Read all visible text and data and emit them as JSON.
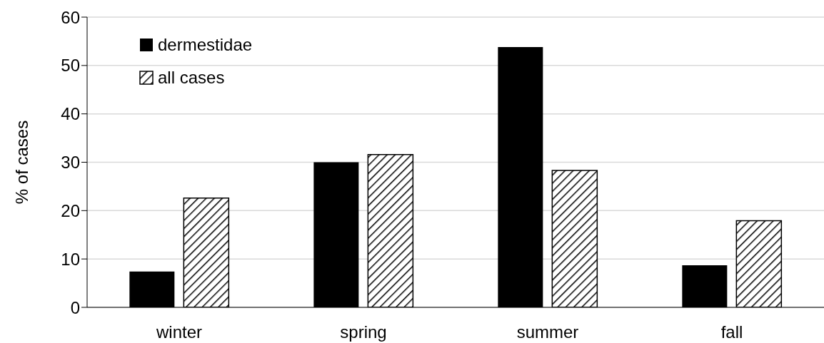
{
  "chart_data": {
    "type": "bar",
    "ylabel": "% of cases",
    "categories": [
      "winter",
      "spring",
      "summer",
      "fall"
    ],
    "series": [
      {
        "name": "dermestidae",
        "color": "#000000",
        "values": [
          7.4,
          30,
          53.8,
          8.7
        ]
      },
      {
        "name": "all cases",
        "color": "#000000",
        "values": [
          22.6,
          31.6,
          28.3,
          17.9
        ]
      }
    ],
    "ylim": [
      0,
      60
    ],
    "yticks": [
      0,
      10,
      20,
      30,
      40,
      50,
      60
    ],
    "grid": "y",
    "legend": "top left"
  }
}
